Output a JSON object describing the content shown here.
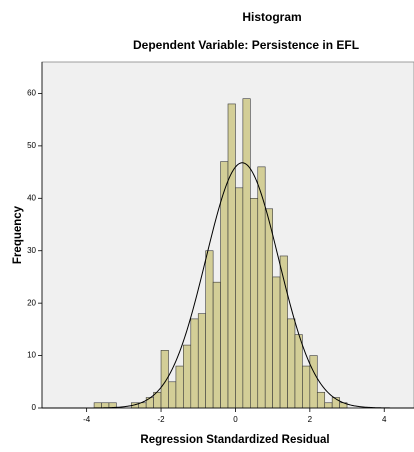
{
  "chart_data": {
    "type": "histogram",
    "title": "Histogram",
    "subtitle": "Dependent Variable: Persistence in EFL",
    "x_label": "Regression Standardized Residual",
    "y_label": "Frequency",
    "bins": [
      -3.8,
      -3.6,
      -3.4,
      -3.2,
      -3.0,
      -2.8,
      -2.6,
      -2.4,
      -2.2,
      -2.0,
      -1.8,
      -1.6,
      -1.4,
      -1.2,
      -1.0,
      -0.8,
      -0.6,
      -0.4,
      -0.2,
      0.0,
      0.2,
      0.4,
      0.6,
      0.8,
      1.0,
      1.2,
      1.4,
      1.6,
      1.8,
      2.0,
      2.2,
      2.4,
      2.6,
      2.8,
      3.0
    ],
    "values": [
      1,
      1,
      1,
      0,
      0,
      1,
      1,
      2,
      3,
      11,
      5,
      8,
      12,
      17,
      18,
      30,
      24,
      47,
      58,
      42,
      59,
      40,
      46,
      38,
      25,
      29,
      17,
      14,
      8,
      10,
      3,
      1,
      2,
      1
    ],
    "color": "#d3ce97",
    "edge_color": "#3a3a3a",
    "background": "#f0f0f0",
    "normal_curve": true,
    "xlim": [
      -5.2,
      4.8
    ],
    "ylim": [
      0,
      66
    ],
    "xticks": [
      -4,
      -2,
      0,
      2,
      4
    ],
    "yticks": [
      0,
      10,
      20,
      30,
      40,
      50,
      60
    ]
  }
}
